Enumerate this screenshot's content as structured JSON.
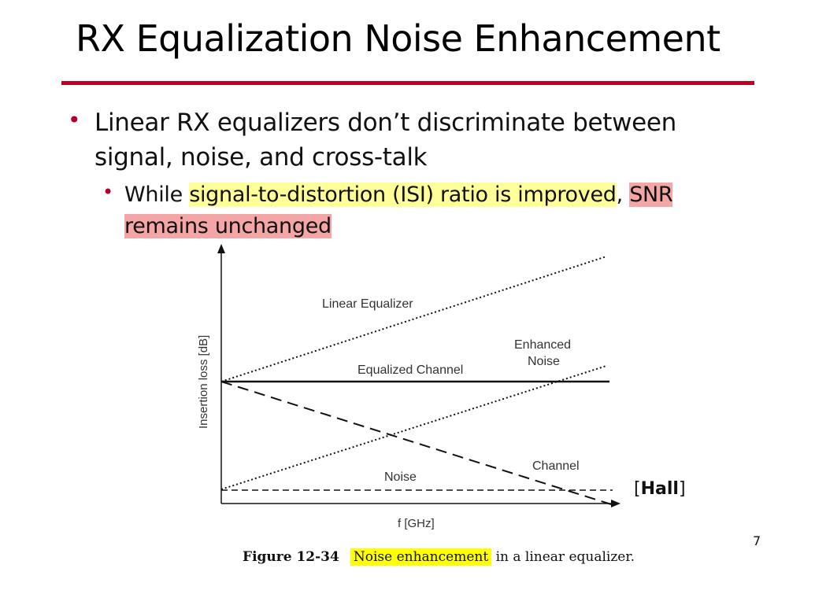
{
  "slide": {
    "title": "RX Equalization Noise Enhancement",
    "bullet1": "Linear RX equalizers don’t discriminate between signal, noise, and cross-talk",
    "bullet2": {
      "pre": "While ",
      "highlight1": "signal-to-distortion (ISI) ratio is improved",
      "comma": ",",
      "highlight2": "SNR remains unchanged"
    },
    "page_number": "7",
    "reference": {
      "open": "[",
      "name": "Hall",
      "close": "]"
    }
  },
  "diagram": {
    "y_axis_label": "Insertion loss [dB]",
    "x_axis_label": "f [GHz]",
    "labels": {
      "linear_equalizer": "Linear Equalizer",
      "enhanced_noise_1": "Enhanced",
      "enhanced_noise_2": "Noise",
      "equalized_channel": "Equalized Channel",
      "noise": "Noise",
      "channel": "Channel"
    },
    "caption": {
      "figure": "Figure 12-34",
      "highlight": "Noise enhancement",
      "rest": " in a linear equalizer."
    }
  },
  "colors": {
    "accent_red": "#c00020",
    "highlight_yellow": "#ffff99",
    "highlight_red": "#f4a6a6",
    "caption_highlight": "#ffff00"
  }
}
